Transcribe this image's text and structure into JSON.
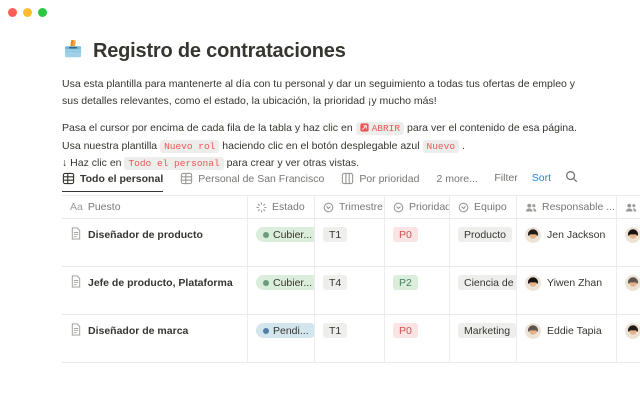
{
  "window": {
    "traffic_lights": [
      "#ff5f57",
      "#febc2e",
      "#28c840"
    ]
  },
  "page": {
    "icon": "ballot-box-icon",
    "title": "Registro de contrataciones",
    "intro": "Usa esta plantilla para mantenerte al día con tu personal y dar un seguimiento a todas tus ofertas de empleo y sus detalles relevantes, como el estado, la ubicación, la prioridad ¡y mucho más!",
    "instructions": [
      {
        "segments": [
          {
            "type": "text",
            "text": "Pasa el cursor por encima de cada fila de la tabla y haz clic en "
          },
          {
            "type": "chip",
            "text": "ABRIR",
            "icon": "open-page-icon"
          },
          {
            "type": "text",
            "text": " para ver el contenido de esa página."
          }
        ]
      },
      {
        "segments": [
          {
            "type": "text",
            "text": "Usa nuestra plantilla "
          },
          {
            "type": "chip",
            "text": "Nuevo rol"
          },
          {
            "type": "text",
            "text": " haciendo clic en el botón desplegable azul "
          },
          {
            "type": "chip",
            "text": "Nuevo"
          },
          {
            "type": "text",
            "text": " ."
          }
        ]
      },
      {
        "segments": [
          {
            "type": "text",
            "text": "↓ Haz clic en "
          },
          {
            "type": "chip",
            "text": "Todo el personal"
          },
          {
            "type": "text",
            "text": " para crear y ver otras vistas."
          }
        ]
      }
    ]
  },
  "toolbar": {
    "tabs": [
      {
        "label": "Todo el personal",
        "icon": "table-view-icon",
        "active": true
      },
      {
        "label": "Personal de San Francisco",
        "icon": "table-view-icon",
        "active": false
      },
      {
        "label": "Por prioridad",
        "icon": "board-view-icon",
        "active": false
      },
      {
        "label": "2 more...",
        "icon": null,
        "active": false
      }
    ],
    "filter_label": "Filter",
    "sort_label": "Sort",
    "search_icon": "search-icon"
  },
  "table": {
    "columns": [
      {
        "label": "Puesto",
        "icon": "text-property-icon"
      },
      {
        "label": "Estado",
        "icon": "status-property-icon"
      },
      {
        "label": "Trimestre",
        "icon": "select-property-icon"
      },
      {
        "label": "Prioridad",
        "icon": "select-property-icon"
      },
      {
        "label": "Equipo",
        "icon": "select-property-icon"
      },
      {
        "label": "Responsable ...",
        "icon": "people-property-icon"
      },
      {
        "label": "",
        "icon": "people-property-icon"
      }
    ],
    "rows": [
      {
        "puesto": "Diseñador de producto",
        "estado": {
          "label": "Cubier...",
          "color": "green"
        },
        "trimestre": "T1",
        "prioridad": {
          "label": "P0",
          "color": "red"
        },
        "equipo": "Producto",
        "responsable": "Jen Jackson",
        "extra_avatar": true
      },
      {
        "puesto": "Jefe de producto, Plataforma",
        "estado": {
          "label": "Cubier...",
          "color": "green"
        },
        "trimestre": "T4",
        "prioridad": {
          "label": "P2",
          "color": "green"
        },
        "equipo": "Ciencia de ...",
        "responsable": "Yiwen Zhan",
        "extra_avatar": true
      },
      {
        "puesto": "Diseñador de marca",
        "estado": {
          "label": "Pendi...",
          "color": "blue"
        },
        "trimestre": "T1",
        "prioridad": {
          "label": "P0",
          "color": "red"
        },
        "equipo": "Marketing",
        "responsable": "Eddie Tapia",
        "extra_avatar": true
      }
    ]
  },
  "colors": {
    "accent_blue": "#2383e2",
    "text": "#37352f",
    "muted_text": "#787774",
    "border": "#e9e9e7",
    "inline_code_red": "#eb5757",
    "status_green_bg": "#dbeddb",
    "status_blue_bg": "#d3e5ef",
    "priority_red_bg": "#fbe4e4",
    "priority_red_text": "#d4524e",
    "priority_green_text": "#448361"
  }
}
